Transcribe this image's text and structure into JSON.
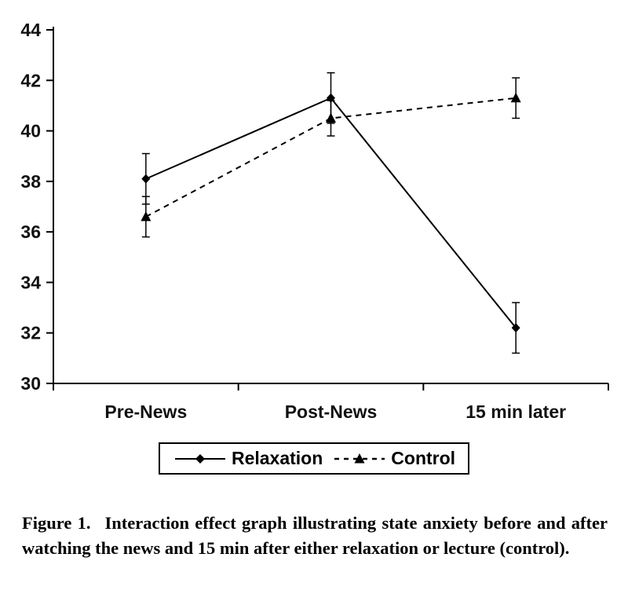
{
  "chart_data": {
    "type": "line",
    "categories": [
      "Pre-News",
      "Post-News",
      "15 min later"
    ],
    "series": [
      {
        "name": "Relaxation",
        "values": [
          38.1,
          41.3,
          32.2
        ],
        "errors": [
          1.0,
          1.0,
          1.0
        ],
        "line_style": "solid",
        "marker": "diamond"
      },
      {
        "name": "Control",
        "values": [
          36.6,
          40.5,
          41.3
        ],
        "errors": [
          0.8,
          0.7,
          0.8
        ],
        "line_style": "dashed",
        "marker": "triangle"
      }
    ],
    "title": "",
    "xlabel": "",
    "ylabel": "",
    "ylim": [
      30,
      44
    ],
    "yticks": [
      30,
      32,
      34,
      36,
      38,
      40,
      42,
      44
    ],
    "grid": false,
    "legend_position": "bottom",
    "line_color": "#000000",
    "background_color": "#ffffff"
  },
  "legend": {
    "items": [
      {
        "label": "Relaxation",
        "marker": "diamond",
        "line": "solid"
      },
      {
        "label": "Control",
        "marker": "triangle",
        "line": "dashed"
      }
    ]
  },
  "caption": {
    "label": "Figure 1.",
    "text": "Interaction effect graph illustrating state anxiety before and after watching the news and 15 min after either relaxation or lecture (control)."
  }
}
